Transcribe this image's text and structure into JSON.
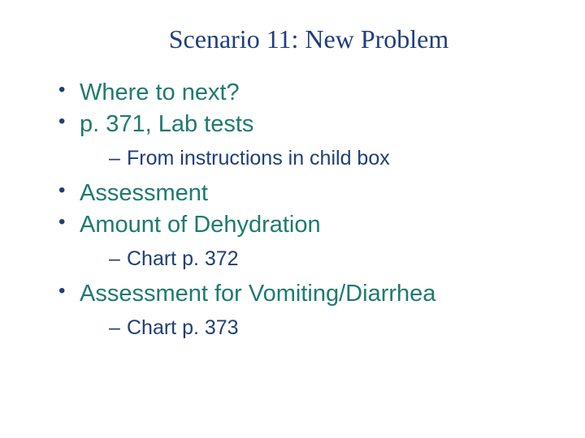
{
  "slide": {
    "title": "Scenario 11: New Problem",
    "title_color": "#1f3f7a",
    "title_fontfamily": "Times New Roman",
    "title_fontsize": 32,
    "bullet_color": "#1f7a6f",
    "bullet_fontsize": 29,
    "bullet_marker_color": "#1f3f7a",
    "sub_color": "#1f3f7a",
    "sub_fontsize": 25,
    "background_color": "#ffffff",
    "bullets": [
      {
        "text": "Where to next?"
      },
      {
        "text": "p. 371, Lab tests",
        "subs": [
          "From instructions in child box"
        ]
      },
      {
        "text": "Assessment"
      },
      {
        "text": "Amount of Dehydration",
        "subs": [
          "Chart p. 372"
        ]
      },
      {
        "text": "Assessment for Vomiting/Diarrhea",
        "subs": [
          "Chart p. 373"
        ]
      }
    ]
  }
}
